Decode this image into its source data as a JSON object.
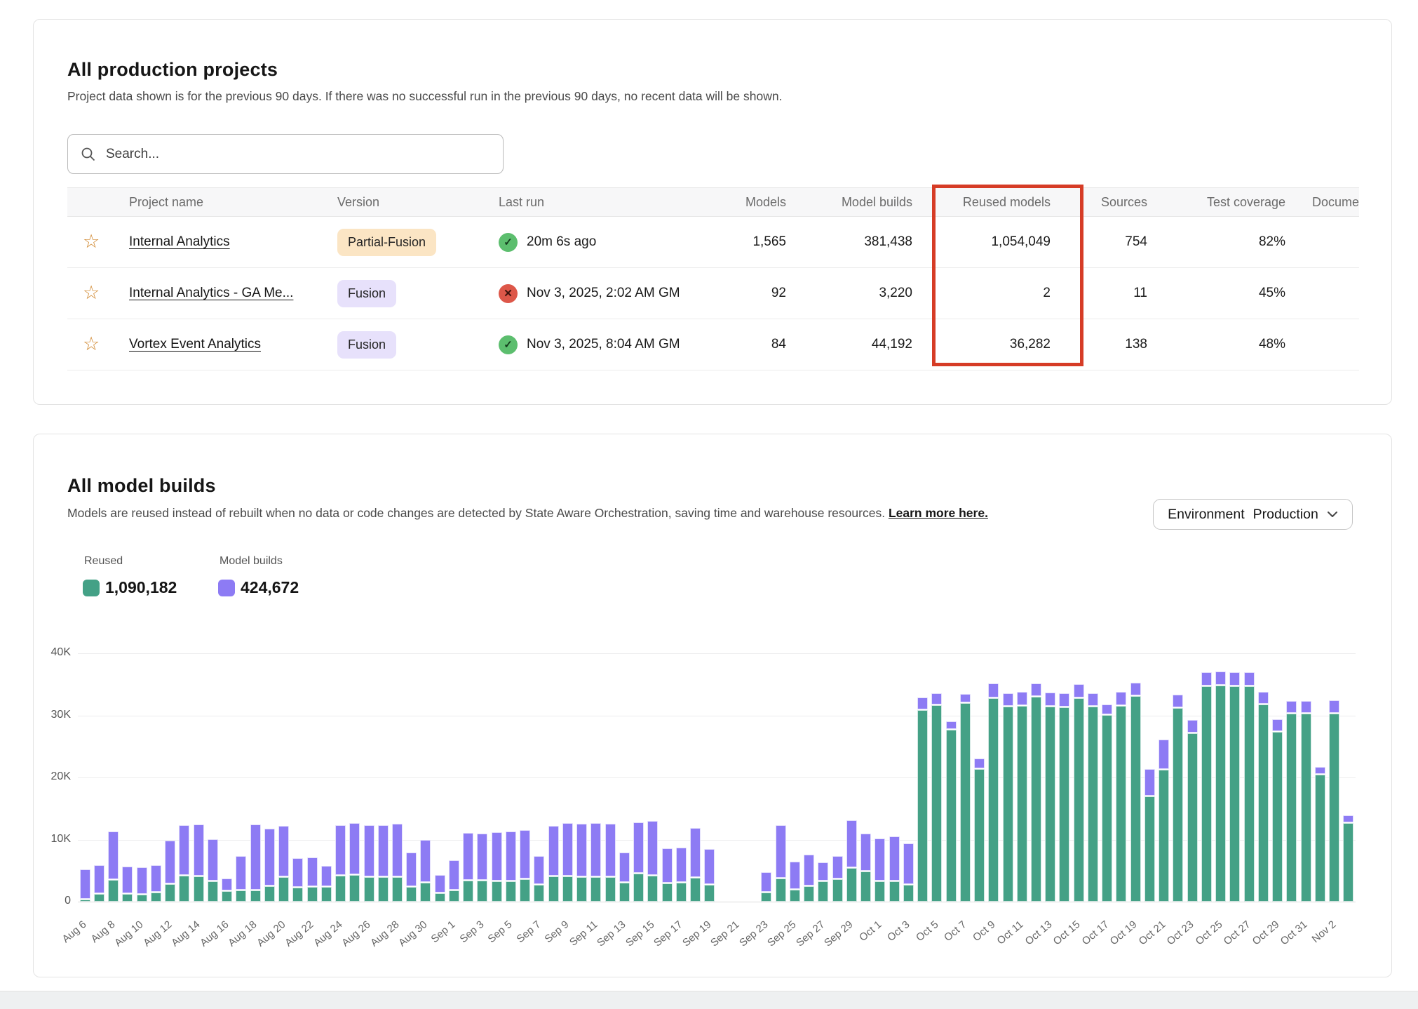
{
  "projects_card": {
    "title": "All production projects",
    "subtitle": "Project data shown is for the previous 90 days. If there was no successful run in the previous 90 days, no recent data will be shown.",
    "search_placeholder": "Search...",
    "columns": [
      "",
      "Project name",
      "Version",
      "Last run",
      "Models",
      "Model builds",
      "Reused models",
      "Sources",
      "Test coverage",
      "Documentation"
    ],
    "highlighted_column": "Reused models",
    "highlight_color": "#d63c26",
    "rows": [
      {
        "name": "Internal Analytics",
        "version": "Partial-Fusion",
        "version_style": "partial",
        "status": "success",
        "last_run": "20m 6s ago",
        "models": "1,565",
        "model_builds": "381,438",
        "reused_models": "1,054,049",
        "sources": "754",
        "test_coverage": "82%"
      },
      {
        "name": "Internal Analytics - GA Me...",
        "version": "Fusion",
        "version_style": "fusion",
        "status": "error",
        "last_run": "Nov 3, 2025, 2:02 AM GM",
        "models": "92",
        "model_builds": "3,220",
        "reused_models": "2",
        "sources": "11",
        "test_coverage": "45%"
      },
      {
        "name": "Vortex Event Analytics",
        "version": "Fusion",
        "version_style": "fusion",
        "status": "success",
        "last_run": "Nov 3, 2025, 8:04 AM GM",
        "models": "84",
        "model_builds": "44,192",
        "reused_models": "36,282",
        "sources": "138",
        "test_coverage": "48%"
      }
    ]
  },
  "builds_card": {
    "title": "All model builds",
    "subtitle": "Models are reused instead of rebuilt when no data or code changes are detected by State Aware Orchestration, saving time and warehouse resources.",
    "learn_more": "Learn more here.",
    "env_label": "Environment",
    "env_value": "Production",
    "legend": {
      "reused_label": "Reused",
      "reused_value": "1,090,182",
      "builds_label": "Model builds",
      "builds_value": "424,672"
    },
    "colors": {
      "reused": "#44a186",
      "builds": "#8d7bf4"
    }
  },
  "chart_data": {
    "type": "bar",
    "stacked": true,
    "title": "All model builds",
    "xlabel": "",
    "ylabel": "",
    "ylim": [
      0,
      40000
    ],
    "ytick_labels": [
      "0",
      "10K",
      "20K",
      "30K",
      "40K"
    ],
    "legend_position": "top-left",
    "grid": true,
    "x": [
      "Aug 6",
      "Aug 7",
      "Aug 8",
      "Aug 9",
      "Aug 10",
      "Aug 11",
      "Aug 12",
      "Aug 13",
      "Aug 14",
      "Aug 15",
      "Aug 16",
      "Aug 17",
      "Aug 18",
      "Aug 19",
      "Aug 20",
      "Aug 21",
      "Aug 22",
      "Aug 23",
      "Aug 24",
      "Aug 25",
      "Aug 26",
      "Aug 27",
      "Aug 28",
      "Aug 29",
      "Aug 30",
      "Aug 31",
      "Sep 1",
      "Sep 2",
      "Sep 3",
      "Sep 4",
      "Sep 5",
      "Sep 6",
      "Sep 7",
      "Sep 8",
      "Sep 9",
      "Sep 10",
      "Sep 11",
      "Sep 12",
      "Sep 13",
      "Sep 14",
      "Sep 15",
      "Sep 16",
      "Sep 17",
      "Sep 18",
      "Sep 19",
      "Sep 20",
      "Sep 21",
      "Sep 22",
      "Sep 23",
      "Sep 24",
      "Sep 25",
      "Sep 26",
      "Sep 27",
      "Sep 28",
      "Sep 29",
      "Sep 30",
      "Oct 1",
      "Oct 2",
      "Oct 3",
      "Oct 4",
      "Oct 5",
      "Oct 6",
      "Oct 7",
      "Oct 8",
      "Oct 9",
      "Oct 10",
      "Oct 11",
      "Oct 12",
      "Oct 13",
      "Oct 14",
      "Oct 15",
      "Oct 16",
      "Oct 17",
      "Oct 18",
      "Oct 19",
      "Oct 20",
      "Oct 21",
      "Oct 22",
      "Oct 23",
      "Oct 24",
      "Oct 25",
      "Oct 26",
      "Oct 27",
      "Oct 28",
      "Oct 29",
      "Oct 30",
      "Oct 31",
      "Nov 1",
      "Nov 2",
      "Nov 3"
    ],
    "series": [
      {
        "name": "Reused",
        "color": "#44a186",
        "values": [
          300,
          1200,
          3500,
          1200,
          1100,
          1500,
          2800,
          4200,
          4100,
          3300,
          1700,
          1800,
          1800,
          2500,
          3900,
          2300,
          2400,
          2400,
          4200,
          4300,
          4000,
          3900,
          4000,
          2400,
          3000,
          1300,
          1800,
          3400,
          3400,
          3300,
          3300,
          3600,
          2700,
          4100,
          4100,
          4000,
          4000,
          4000,
          3000,
          4500,
          4200,
          2900,
          3100,
          3800,
          2700,
          0,
          0,
          0,
          1500,
          3700,
          1900,
          2500,
          3300,
          3600,
          5400,
          4900,
          3300,
          3300,
          2700,
          30800,
          31600,
          27700,
          32000,
          21300,
          32800,
          31400,
          31500,
          33000,
          31400,
          31300,
          32800,
          31400,
          30100,
          31500,
          33100,
          17000,
          21200,
          31200,
          27100,
          34700,
          34800,
          34700,
          34700,
          31700,
          27300,
          30300,
          30300,
          20500,
          30300,
          12600
        ]
      },
      {
        "name": "Model builds",
        "color": "#8d7bf4",
        "values": [
          4700,
          4500,
          7700,
          4300,
          4300,
          4300,
          6900,
          8000,
          8200,
          6700,
          1900,
          5400,
          10500,
          9200,
          8100,
          4600,
          4600,
          3300,
          8000,
          8200,
          8200,
          8200,
          8500,
          5400,
          6800,
          2800,
          4800,
          7600,
          7500,
          7800,
          7900,
          7800,
          4500,
          8000,
          8500,
          8500,
          8600,
          8500,
          4700,
          8100,
          8700,
          5500,
          5500,
          7900,
          5700,
          0,
          0,
          0,
          3200,
          8500,
          4400,
          5000,
          2900,
          3600,
          7600,
          6000,
          6800,
          7100,
          6500,
          1900,
          1800,
          1200,
          1400,
          1600,
          2300,
          2000,
          2100,
          2000,
          2100,
          2100,
          2200,
          2000,
          1600,
          2100,
          2000,
          4300,
          4800,
          2000,
          2000,
          2100,
          2200,
          2100,
          2100,
          1900,
          1900,
          1900,
          1900,
          1100,
          2000,
          1100
        ]
      }
    ]
  }
}
